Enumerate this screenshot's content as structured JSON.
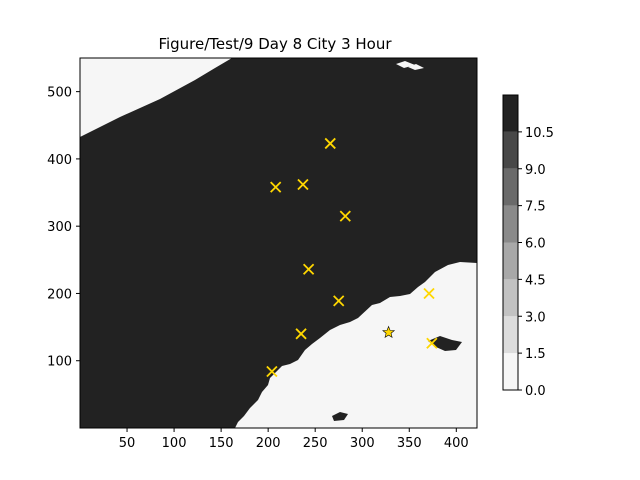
{
  "chart_data": {
    "type": "heatmap",
    "title": "Figure/Test/9 Day 8 City 3 Hour",
    "xlabel": "",
    "ylabel": "",
    "xlim": [
      0,
      422
    ],
    "ylim": [
      0,
      550
    ],
    "xticks": [
      50,
      100,
      150,
      200,
      250,
      300,
      350,
      400
    ],
    "yticks": [
      100,
      200,
      300,
      400,
      500
    ],
    "field_description": "filled contour map; dark region value ~10, light region value ~0",
    "light_region_value": 0,
    "dark_region_value": 10,
    "colorbar": {
      "levels": [
        "0.0",
        "1.5",
        "3.0",
        "4.5",
        "6.0",
        "7.5",
        "9.0",
        "10.5"
      ],
      "colors": [
        "#f6f6f6",
        "#dcdcdc",
        "#c2c2c2",
        "#a8a8a8",
        "#8a8a8a",
        "#6a6a6a",
        "#484848",
        "#222222"
      ]
    },
    "markers": {
      "color": "#ffd700",
      "cities": [
        {
          "x": 266,
          "y": 423
        },
        {
          "x": 208,
          "y": 358
        },
        {
          "x": 237,
          "y": 362
        },
        {
          "x": 282,
          "y": 315
        },
        {
          "x": 243,
          "y": 236
        },
        {
          "x": 275,
          "y": 189
        },
        {
          "x": 371,
          "y": 200
        },
        {
          "x": 235,
          "y": 140
        },
        {
          "x": 374,
          "y": 126
        },
        {
          "x": 204,
          "y": 84
        }
      ],
      "depot": {
        "x": 328,
        "y": 142
      }
    }
  }
}
